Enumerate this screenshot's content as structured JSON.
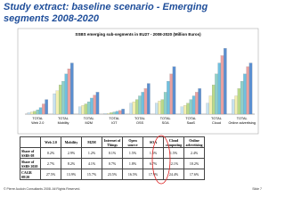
{
  "header": {
    "title": "Study extract: baseline scenario - Emerging segments 2008-2020"
  },
  "chart_data": {
    "type": "bar",
    "title": "SSBS emerging sub-segments in EU27 - 2008-2020 (Million Euros)",
    "categories": [
      [
        "TOTAL",
        "Web 2.0"
      ],
      [
        "TOTAL",
        "Mobility"
      ],
      [
        "TOTAL",
        "M2M"
      ],
      [
        "TOTAL",
        "IOT"
      ],
      [
        "TOTAL",
        "OSS"
      ],
      [
        "TOTAL",
        "SOA"
      ],
      [
        "TOTAL",
        "SaaS"
      ],
      [
        "TOTAL",
        "Cloud"
      ],
      [
        "TOTAL",
        "Online advertising"
      ]
    ],
    "ylim": [
      0,
      100
    ],
    "series": [
      {
        "color": "#c6e2f0",
        "values": [
          2,
          28,
          10,
          1,
          15,
          15,
          10,
          15,
          20
        ]
      },
      {
        "color": "#f3efb0",
        "values": [
          3,
          32,
          12,
          1,
          17,
          18,
          12,
          25,
          25
        ]
      },
      {
        "color": "#b9d98a",
        "values": [
          4,
          40,
          14,
          2,
          20,
          20,
          15,
          40,
          35
        ]
      },
      {
        "color": "#8fd0c8",
        "values": [
          6,
          45,
          17,
          3,
          25,
          30,
          20,
          55,
          45
        ]
      },
      {
        "color": "#6fc0e0",
        "values": [
          9,
          55,
          22,
          4,
          30,
          45,
          25,
          70,
          55
        ]
      },
      {
        "color": "#e9a0a0",
        "values": [
          14,
          62,
          26,
          5,
          35,
          55,
          30,
          80,
          65
        ]
      },
      {
        "color": "#5b8fd0",
        "values": [
          20,
          70,
          30,
          7,
          42,
          65,
          35,
          90,
          70
        ]
      }
    ]
  },
  "table": {
    "columns": [
      "Web 2.0",
      "Mobility",
      "M2M",
      "Internet of Things",
      "Open source",
      "SOA",
      "Cloud computing",
      "Online advertising"
    ],
    "rows": [
      [
        "Share of SSBS 08",
        "0.2%",
        "2.9%",
        "1.2%",
        "0.1%",
        "1.5%",
        "1.5%",
        "1.5%",
        "2.4%"
      ],
      [
        "Share of SSBS 2020",
        "2.7%",
        "8.2%",
        "4.1%",
        "0.7%",
        "1.8%",
        "6.7%",
        "12.1%",
        "10.2%"
      ],
      [
        "CAGR 08/20",
        "27.5%",
        "13.9%",
        "15.7%",
        "23.5%",
        "16.5%",
        "17.9%",
        "24.4%",
        "17.6%"
      ]
    ]
  },
  "footer": {
    "copyright": "© Pierre Audoin Consultants 2008. All Rights Reserved.",
    "slide": "Slide 7"
  }
}
